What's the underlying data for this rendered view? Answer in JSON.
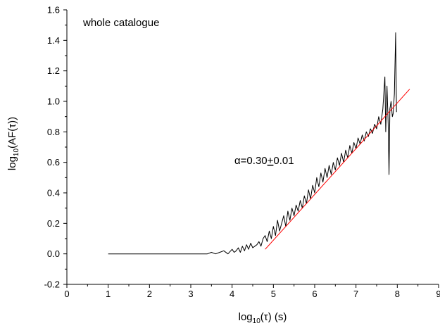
{
  "chart_data": {
    "type": "line",
    "xlabel_parts": [
      "log",
      "10",
      "(τ) (s)"
    ],
    "ylabel_parts": [
      "log",
      "10",
      "(AF(τ))"
    ],
    "xlim": [
      0,
      9
    ],
    "ylim": [
      -0.2,
      1.6
    ],
    "x_ticks": [
      0,
      1,
      2,
      3,
      4,
      5,
      6,
      7,
      8,
      9
    ],
    "x_tick_labels": [
      "0",
      "1",
      "2",
      "3",
      "4",
      "5",
      "6",
      "7",
      "8",
      "9"
    ],
    "y_ticks": [
      -0.2,
      0.0,
      0.2,
      0.4,
      0.6,
      0.8,
      1.0,
      1.2,
      1.4,
      1.6
    ],
    "y_tick_labels": [
      "-0.2",
      "0.0",
      "0.2",
      "0.4",
      "0.6",
      "0.8",
      "1.0",
      "1.2",
      "1.4",
      "1.6"
    ],
    "grid": false,
    "annotations": {
      "panel_label": "whole catalogue",
      "fit_prefix": "α=0.30",
      "fit_pm": "+",
      "fit_suffix": "0.01"
    },
    "series": [
      {
        "color": "#000000",
        "x": [
          1.0,
          1.2,
          1.4,
          1.6,
          1.8,
          2.0,
          2.2,
          2.4,
          2.6,
          2.8,
          3.0,
          3.1,
          3.2,
          3.3,
          3.4,
          3.5,
          3.6,
          3.7,
          3.8,
          3.9,
          4.0,
          4.05,
          4.1,
          4.15,
          4.2,
          4.25,
          4.3,
          4.35,
          4.4,
          4.45,
          4.5,
          4.55,
          4.6,
          4.65,
          4.7,
          4.75,
          4.8,
          4.85,
          4.9,
          4.95,
          5.0,
          5.05,
          5.1,
          5.15,
          5.2,
          5.25,
          5.3,
          5.35,
          5.4,
          5.45,
          5.5,
          5.55,
          5.6,
          5.65,
          5.7,
          5.75,
          5.8,
          5.85,
          5.9,
          5.95,
          6.0,
          6.05,
          6.1,
          6.15,
          6.2,
          6.25,
          6.3,
          6.35,
          6.4,
          6.45,
          6.5,
          6.55,
          6.6,
          6.65,
          6.7,
          6.75,
          6.8,
          6.85,
          6.9,
          6.95,
          7.0,
          7.05,
          7.1,
          7.15,
          7.2,
          7.25,
          7.3,
          7.35,
          7.4,
          7.45,
          7.5,
          7.55,
          7.6,
          7.65,
          7.7,
          7.72,
          7.75,
          7.78,
          7.8,
          7.82,
          7.85,
          7.88,
          7.9,
          7.93,
          7.96,
          7.98
        ],
        "y": [
          0.0,
          0.0,
          0.0,
          0.0,
          0.0,
          0.0,
          0.0,
          0.0,
          0.0,
          0.0,
          0.0,
          0.0,
          0.0,
          0.0,
          0.0,
          0.01,
          0.0,
          0.01,
          0.02,
          0.0,
          0.03,
          0.01,
          0.02,
          0.04,
          0.01,
          0.05,
          0.02,
          0.06,
          0.03,
          0.07,
          0.04,
          0.05,
          0.06,
          0.08,
          0.05,
          0.1,
          0.12,
          0.08,
          0.15,
          0.1,
          0.18,
          0.12,
          0.22,
          0.15,
          0.2,
          0.25,
          0.18,
          0.28,
          0.22,
          0.3,
          0.25,
          0.32,
          0.28,
          0.35,
          0.3,
          0.38,
          0.33,
          0.42,
          0.36,
          0.45,
          0.4,
          0.5,
          0.44,
          0.53,
          0.47,
          0.56,
          0.5,
          0.58,
          0.52,
          0.6,
          0.55,
          0.63,
          0.58,
          0.66,
          0.6,
          0.68,
          0.63,
          0.71,
          0.66,
          0.73,
          0.69,
          0.76,
          0.72,
          0.78,
          0.74,
          0.8,
          0.77,
          0.82,
          0.79,
          0.85,
          0.82,
          0.9,
          0.85,
          0.95,
          1.16,
          0.8,
          1.1,
          0.85,
          0.52,
          0.95,
          1.0,
          0.9,
          0.92,
          1.05,
          1.45,
          0.93
        ]
      },
      {
        "color": "#ff0000",
        "x": [
          4.8,
          8.3
        ],
        "y": [
          0.03,
          1.08
        ]
      }
    ]
  }
}
